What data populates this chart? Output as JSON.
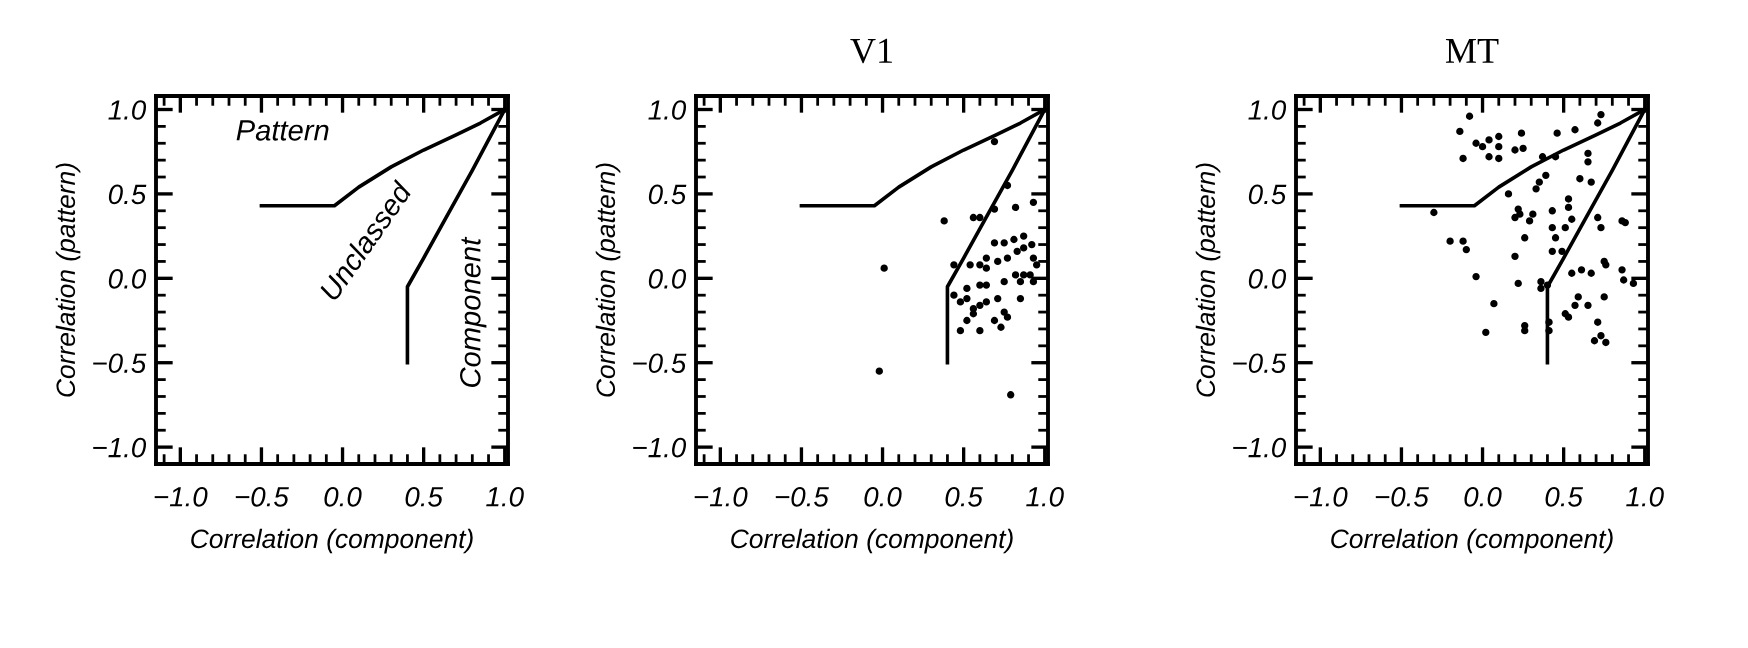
{
  "chart_data": [
    {
      "type": "line",
      "xlabel": "Correlation (component)",
      "ylabel": "Correlation (pattern)",
      "xlim": [
        -1.15,
        1.02
      ],
      "ylim": [
        -1.1,
        1.08
      ],
      "xticks": [
        {
          "value": -1,
          "label": "−1.0"
        },
        {
          "value": -0.5,
          "label": "−0.5"
        },
        {
          "value": 0,
          "label": "0.0"
        },
        {
          "value": 0.5,
          "label": "0.5"
        },
        {
          "value": 1,
          "label": "1.0"
        }
      ],
      "yticks": [
        {
          "value": -1,
          "label": "−1.0"
        },
        {
          "value": -0.5,
          "label": "−0.5"
        },
        {
          "value": 0,
          "label": "0.0"
        },
        {
          "value": 0.5,
          "label": "0.5"
        },
        {
          "value": 1,
          "label": "1.0"
        }
      ],
      "series": [
        {
          "color": "#000000",
          "x": [
            -0.5,
            -0.05,
            0.1,
            0.3,
            0.5,
            0.7,
            0.85,
            1.0
          ],
          "values": [
            0.43,
            0.43,
            0.54,
            0.66,
            0.76,
            0.85,
            0.92,
            1.0
          ]
        },
        {
          "color": "#000000",
          "x": [
            0.4,
            0.4,
            0.5,
            0.65,
            0.8,
            0.9,
            1.0
          ],
          "values": [
            -0.5,
            -0.05,
            0.12,
            0.38,
            0.64,
            0.82,
            1.0
          ]
        }
      ],
      "annotations": [
        "Pattern",
        "Unclassed",
        "Component"
      ]
    },
    {
      "type": "scatter",
      "title": "V1",
      "xlabel": "Correlation (component)",
      "ylabel": "Correlation (pattern)",
      "xlim": [
        -1.15,
        1.02
      ],
      "ylim": [
        -1.1,
        1.08
      ],
      "xticks": [
        {
          "value": -1,
          "label": "−1.0"
        },
        {
          "value": -0.5,
          "label": "−0.5"
        },
        {
          "value": 0,
          "label": "0.0"
        },
        {
          "value": 0.5,
          "label": "0.5"
        },
        {
          "value": 1,
          "label": "1.0"
        }
      ],
      "yticks": [
        {
          "value": -1,
          "label": "−1.0"
        },
        {
          "value": -0.5,
          "label": "−0.5"
        },
        {
          "value": 0,
          "label": "0.0"
        },
        {
          "value": 0.5,
          "label": "0.5"
        },
        {
          "value": 1,
          "label": "1.0"
        }
      ],
      "series": [
        {
          "type": "line",
          "color": "#000000",
          "x": [
            -0.5,
            -0.05,
            0.1,
            0.3,
            0.5,
            0.7,
            0.85,
            1.0
          ],
          "values": [
            0.43,
            0.43,
            0.54,
            0.66,
            0.76,
            0.85,
            0.92,
            1.0
          ]
        },
        {
          "type": "line",
          "color": "#000000",
          "x": [
            0.4,
            0.4,
            0.5,
            0.65,
            0.8,
            0.9,
            1.0
          ],
          "values": [
            -0.5,
            -0.05,
            0.12,
            0.38,
            0.64,
            0.82,
            1.0
          ]
        },
        {
          "color": "#000000",
          "marker": "circle",
          "x": [
            0.69,
            0.38,
            0.56,
            0.6,
            0.69,
            0.77,
            0.82,
            0.93,
            0.01,
            0.44,
            -0.02,
            0.79,
            0.69,
            0.75,
            0.81,
            0.87,
            0.92,
            0.87,
            0.83,
            0.77,
            0.71,
            0.64,
            0.6,
            0.64,
            0.54,
            0.93,
            0.95,
            0.91,
            0.87,
            0.82,
            0.93,
            0.85,
            0.75,
            0.64,
            0.6,
            0.52,
            0.44,
            0.48,
            0.52,
            0.56,
            0.6,
            0.64,
            0.71,
            0.75,
            0.85,
            0.56,
            0.48,
            0.6,
            0.73,
            0.77,
            0.69,
            0.52
          ],
          "values": [
            0.81,
            0.34,
            0.36,
            0.36,
            0.41,
            0.55,
            0.42,
            0.45,
            0.06,
            0.08,
            -0.55,
            -0.69,
            0.21,
            0.21,
            0.23,
            0.25,
            0.2,
            0.18,
            0.16,
            0.12,
            0.1,
            0.12,
            0.08,
            0.06,
            0.08,
            0.12,
            0.08,
            0.02,
            0.02,
            0.02,
            -0.02,
            -0.02,
            -0.02,
            -0.04,
            -0.04,
            -0.06,
            -0.1,
            -0.14,
            -0.12,
            -0.18,
            -0.16,
            -0.14,
            -0.12,
            -0.2,
            -0.12,
            -0.21,
            -0.31,
            -0.31,
            -0.29,
            -0.23,
            -0.25,
            -0.25
          ]
        }
      ]
    },
    {
      "type": "scatter",
      "title": "MT",
      "xlabel": "Correlation (component)",
      "ylabel": "Correlation (pattern)",
      "xlim": [
        -1.15,
        1.02
      ],
      "ylim": [
        -1.1,
        1.08
      ],
      "xticks": [
        {
          "value": -1,
          "label": "−1.0"
        },
        {
          "value": -0.5,
          "label": "−0.5"
        },
        {
          "value": 0,
          "label": "0.0"
        },
        {
          "value": 0.5,
          "label": "0.5"
        },
        {
          "value": 1,
          "label": "1.0"
        }
      ],
      "yticks": [
        {
          "value": -1,
          "label": "−1.0"
        },
        {
          "value": -0.5,
          "label": "−0.5"
        },
        {
          "value": 0,
          "label": "0.0"
        },
        {
          "value": 0.5,
          "label": "0.5"
        },
        {
          "value": 1,
          "label": "1.0"
        }
      ],
      "series": [
        {
          "type": "line",
          "color": "#000000",
          "x": [
            -0.5,
            -0.05,
            0.1,
            0.3,
            0.5,
            0.7,
            0.85,
            1.0
          ],
          "values": [
            0.43,
            0.43,
            0.54,
            0.66,
            0.76,
            0.85,
            0.92,
            1.0
          ]
        },
        {
          "type": "line",
          "color": "#000000",
          "x": [
            0.4,
            0.4,
            0.5,
            0.65,
            0.8,
            0.9,
            1.0
          ],
          "values": [
            -0.5,
            -0.05,
            0.12,
            0.38,
            0.64,
            0.82,
            1.0
          ]
        },
        {
          "color": "#000000",
          "marker": "circle",
          "x": [
            -0.3,
            -0.2,
            -0.12,
            -0.1,
            -0.14,
            -0.08,
            -0.12,
            -0.04,
            0.07,
            0.02,
            -0.04,
            0.0,
            0.04,
            0.1,
            0.1,
            0.04,
            0.1,
            0.24,
            0.2,
            0.25,
            0.16,
            0.22,
            0.23,
            0.2,
            0.31,
            0.29,
            0.26,
            0.2,
            0.22,
            0.26,
            0.26,
            0.36,
            0.36,
            0.4,
            0.41,
            0.41,
            0.37,
            0.39,
            0.35,
            0.33,
            0.46,
            0.45,
            0.43,
            0.43,
            0.45,
            0.49,
            0.43,
            0.51,
            0.53,
            0.53,
            0.55,
            0.57,
            0.6,
            0.65,
            0.65,
            0.67,
            0.73,
            0.71,
            0.71,
            0.73,
            0.75,
            0.76,
            0.61,
            0.55,
            0.67,
            0.59,
            0.57,
            0.51,
            0.53,
            0.65,
            0.75,
            0.71,
            0.69,
            0.73,
            0.76,
            0.86,
            0.86,
            0.88,
            0.87,
            0.93
          ],
          "values": [
            0.39,
            0.22,
            0.22,
            0.17,
            0.87,
            0.96,
            0.71,
            0.01,
            -0.15,
            -0.32,
            0.8,
            0.78,
            0.82,
            0.84,
            0.78,
            0.72,
            0.71,
            0.86,
            0.76,
            0.77,
            0.5,
            0.41,
            0.38,
            0.36,
            0.38,
            0.34,
            0.24,
            0.13,
            -0.03,
            -0.28,
            -0.31,
            -0.02,
            -0.06,
            -0.04,
            -0.26,
            -0.31,
            0.72,
            0.61,
            0.57,
            0.53,
            0.86,
            0.72,
            0.4,
            0.3,
            0.24,
            0.16,
            0.16,
            0.3,
            0.47,
            0.42,
            0.35,
            0.88,
            0.59,
            0.74,
            0.69,
            0.57,
            0.97,
            0.92,
            0.36,
            0.3,
            0.1,
            0.08,
            0.05,
            0.03,
            0.03,
            -0.11,
            -0.16,
            -0.21,
            -0.23,
            -0.16,
            -0.11,
            -0.26,
            -0.37,
            -0.34,
            -0.38,
            0.34,
            0.05,
            0.33,
            -0.01,
            -0.03
          ]
        }
      ]
    }
  ]
}
